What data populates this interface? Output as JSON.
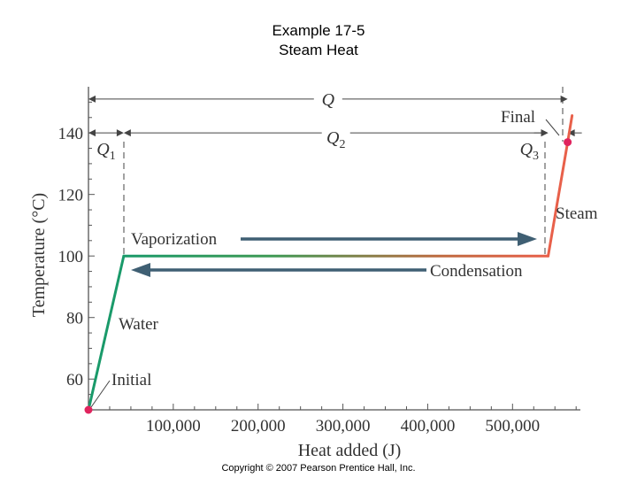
{
  "slide": {
    "title_line1": "Example 17-5",
    "title_line2": "Steam Heat",
    "footer": "Copyright © 2007 Pearson Prentice Hall, Inc."
  },
  "colors": {
    "axis": "#555555",
    "tick_text": "#333333",
    "water": "#1a9a6a",
    "steam": "#e8604a",
    "arrow": "#3f5f73",
    "point": "#e0245e",
    "dim_line": "#444444"
  },
  "chart_data": {
    "type": "line",
    "title": "",
    "xlabel": "Heat added (J)",
    "ylabel": "Temperature (°C)",
    "xlim": [
      0,
      580000
    ],
    "ylim": [
      50,
      155
    ],
    "x_ticks": [
      100000,
      200000,
      300000,
      400000,
      500000
    ],
    "x_tick_labels": [
      "100,000",
      "200,000",
      "300,000",
      "400,000",
      "500,000"
    ],
    "y_ticks": [
      60,
      80,
      100,
      120,
      140
    ],
    "y_tick_labels": [
      "60",
      "80",
      "100",
      "120",
      "140"
    ],
    "series": [
      {
        "key": "heating_curve",
        "x": [
          0,
          41600,
          542000,
          565000
        ],
        "y": [
          50,
          100,
          100,
          137
        ]
      }
    ],
    "points": [
      {
        "label": "Initial",
        "x": 0,
        "y": 50
      },
      {
        "label": "Final",
        "x": 565000,
        "y": 137
      }
    ],
    "segment_labels": [
      "Water",
      "Vaporization",
      "Condensation",
      "Steam"
    ],
    "dimensions": [
      {
        "label": "Q",
        "x0": 0,
        "x1": 565000,
        "y": 151
      },
      {
        "label": "Q",
        "subscript": "1",
        "x0": 0,
        "x1": 41600,
        "y": 140
      },
      {
        "label": "Q",
        "subscript": "2",
        "x0": 41600,
        "x1": 542000,
        "y": 140
      },
      {
        "label": "Q",
        "subscript": "3",
        "x0": 542000,
        "x1": 565000,
        "y": 140
      }
    ],
    "grid": false
  }
}
